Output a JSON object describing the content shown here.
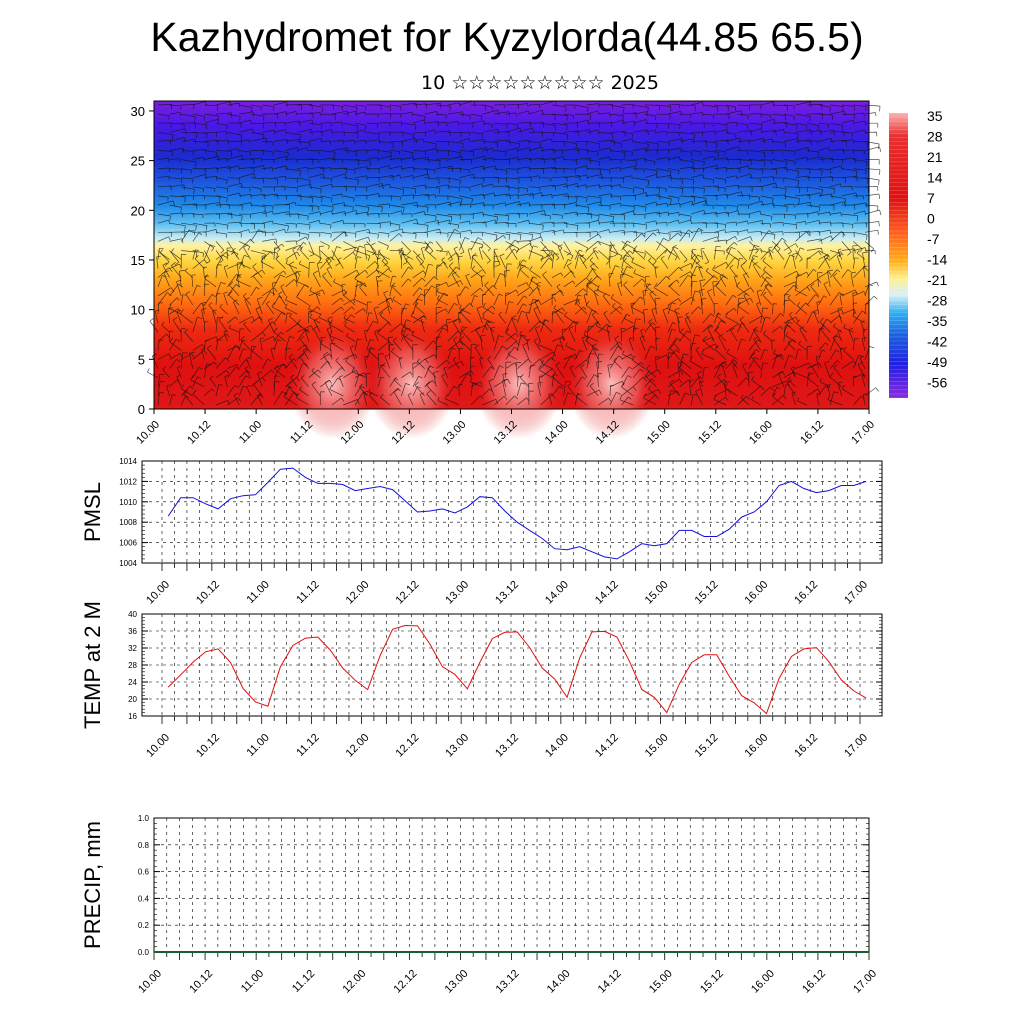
{
  "title": "Kazhydromet for Kyzylorda(44.85 65.5)",
  "subtitle": "10 ☆☆☆☆☆☆☆☆☆ 2025",
  "colors": {
    "pmsl_line": "#1010e0",
    "temp_line": "#e01010",
    "precip_line": "#1a5f2a",
    "frame": "#000000"
  },
  "chart_data": [
    {
      "type": "heatmap",
      "name": "cross-section",
      "title": "",
      "xlabel": "",
      "ylabel": "",
      "y_ticks": [
        "0",
        "5",
        "10",
        "15",
        "20",
        "25",
        "30"
      ],
      "ylim": [
        0,
        31
      ],
      "x_ticks": [
        "10.00",
        "10.12",
        "11.00",
        "11.12",
        "12.00",
        "12.12",
        "13.00",
        "13.12",
        "14.00",
        "14.12",
        "15.00",
        "15.12",
        "16.00",
        "16.12",
        "17.00"
      ],
      "colorbar_labels": [
        "35",
        "28",
        "21",
        "14",
        "7",
        "0",
        "-7",
        "-14",
        "-21",
        "-28",
        "-35",
        "-42",
        "-49",
        "-56"
      ],
      "overlay": "wind barbs",
      "colormap": "temperature: white/pink (warm, low levels) → red → orange → yellow (~15) → light blue → blue → purple (cold, top)"
    },
    {
      "type": "line",
      "ylabel": "PMSL",
      "ylim": [
        1004,
        1014
      ],
      "y_ticks": [
        "1004",
        "1006",
        "1008",
        "1010",
        "1012",
        "1014"
      ],
      "x_ticks": [
        "10.00",
        "10.12",
        "11.00",
        "11.12",
        "12.00",
        "12.12",
        "13.00",
        "13.12",
        "14.00",
        "14.12",
        "15.00",
        "15.12",
        "16.00",
        "16.12",
        "17.00"
      ],
      "x_step_hours": 3,
      "values": [
        1008.6,
        1010.4,
        1010.4,
        1009.8,
        1009.3,
        1010.3,
        1010.6,
        1010.7,
        1011.9,
        1013.2,
        1013.3,
        1012.4,
        1011.8,
        1011.8,
        1011.7,
        1011.1,
        1011.3,
        1011.5,
        1011.2,
        1010.1,
        1009.0,
        1009.1,
        1009.3,
        1008.9,
        1009.5,
        1010.5,
        1010.4,
        1009.1,
        1008.0,
        1007.2,
        1006.4,
        1005.4,
        1005.3,
        1005.6,
        1005.1,
        1004.6,
        1004.4,
        1005.1,
        1005.9,
        1005.7,
        1005.9,
        1007.2,
        1007.2,
        1006.6,
        1006.6,
        1007.3,
        1008.5,
        1009.0,
        1010.0,
        1011.6,
        1012.0,
        1011.3,
        1010.9,
        1011.1,
        1011.6,
        1011.6,
        1012.0
      ]
    },
    {
      "type": "line",
      "ylabel": "TEMP at 2 M",
      "ylim": [
        16,
        40
      ],
      "y_ticks": [
        "16",
        "20",
        "24",
        "28",
        "32",
        "36",
        "40"
      ],
      "x_ticks": [
        "10.00",
        "10.12",
        "11.00",
        "11.12",
        "12.00",
        "12.12",
        "13.00",
        "13.12",
        "14.00",
        "14.12",
        "15.00",
        "15.12",
        "16.00",
        "16.12",
        "17.00"
      ],
      "x_step_hours": 3,
      "values": [
        22.8,
        25.7,
        28.7,
        31.1,
        31.8,
        28.6,
        22.5,
        19.3,
        18.3,
        27.6,
        32.6,
        34.3,
        34.6,
        31.5,
        27.3,
        24.4,
        22.2,
        30.2,
        36.4,
        37.3,
        37.2,
        32.9,
        27.6,
        25.8,
        22.4,
        28.6,
        34.2,
        35.7,
        35.8,
        32.1,
        27.3,
        24.7,
        20.4,
        29.6,
        35.8,
        35.9,
        34.6,
        28.9,
        22.2,
        20.4,
        16.8,
        23.5,
        28.6,
        30.4,
        30.4,
        25.4,
        20.8,
        19.1,
        16.6,
        24.8,
        30.0,
        31.8,
        32.1,
        28.8,
        24.5,
        21.9,
        20.2
      ]
    },
    {
      "type": "line",
      "ylabel": "PRECIP, mm",
      "ylim": [
        0,
        1
      ],
      "y_ticks": [
        "0.0",
        "0.2",
        "0.4",
        "0.6",
        "0.8",
        "1.0"
      ],
      "x_ticks": [
        "10.00",
        "10.12",
        "11.00",
        "11.12",
        "12.00",
        "12.12",
        "13.00",
        "13.12",
        "14.00",
        "14.12",
        "15.00",
        "15.12",
        "16.00",
        "16.12",
        "17.00"
      ],
      "values": [
        0,
        0,
        0,
        0,
        0,
        0,
        0,
        0,
        0,
        0,
        0,
        0,
        0,
        0,
        0,
        0,
        0,
        0,
        0,
        0,
        0,
        0,
        0,
        0,
        0,
        0,
        0,
        0,
        0,
        0,
        0,
        0,
        0,
        0,
        0,
        0,
        0,
        0,
        0,
        0,
        0,
        0,
        0,
        0,
        0,
        0,
        0,
        0,
        0,
        0,
        0,
        0,
        0,
        0,
        0,
        0,
        0
      ]
    }
  ]
}
